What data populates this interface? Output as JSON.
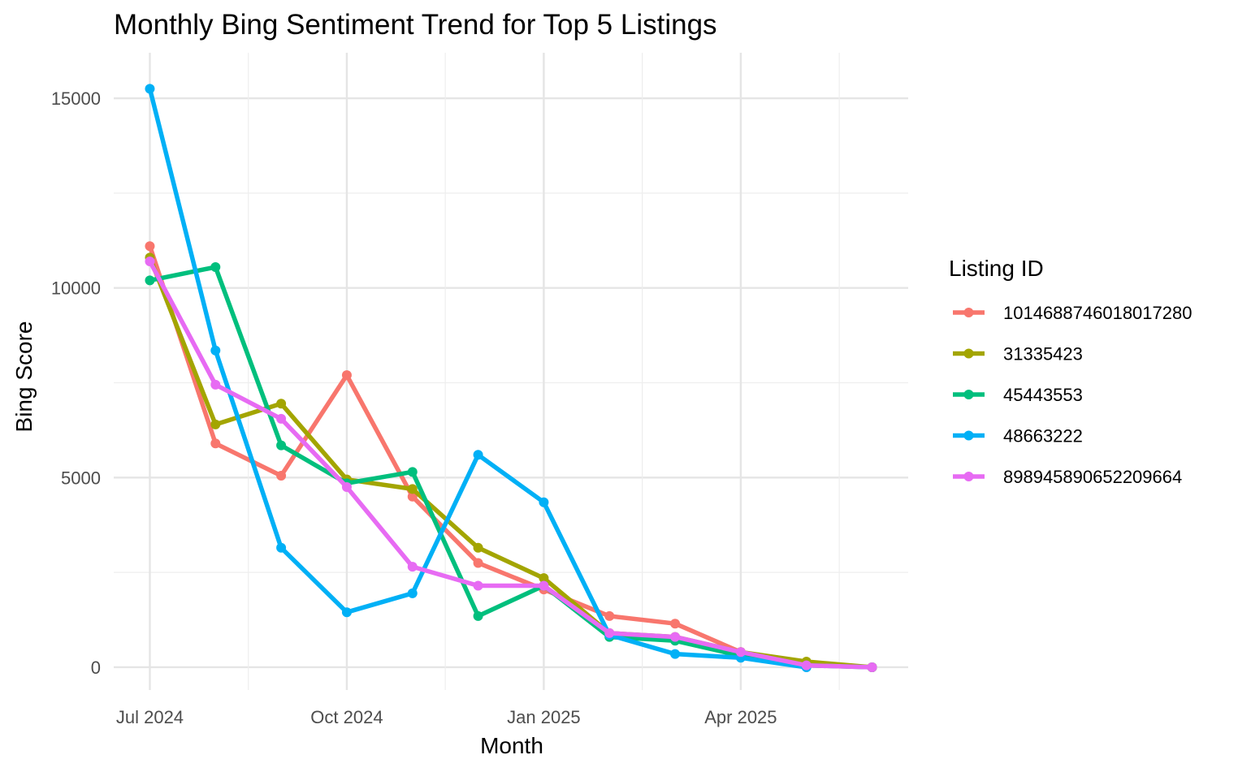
{
  "chart_data": {
    "type": "line",
    "title": "Monthly Bing Sentiment Trend for Top 5 Listings",
    "xlabel": "Month",
    "ylabel": "Bing Score",
    "x": [
      "2024-07",
      "2024-08",
      "2024-09",
      "2024-10",
      "2024-11",
      "2024-12",
      "2025-01",
      "2025-02",
      "2025-03",
      "2025-04",
      "2025-05",
      "2025-06"
    ],
    "x_ticks": [
      {
        "month": "2024-07",
        "label": "Jul 2024"
      },
      {
        "month": "2024-10",
        "label": "Oct 2024"
      },
      {
        "month": "2025-01",
        "label": "Jan 2025"
      },
      {
        "month": "2025-04",
        "label": "Apr 2025"
      }
    ],
    "ylim": [
      -600,
      16200
    ],
    "y_ticks": [
      0,
      5000,
      10000,
      15000
    ],
    "grid": true,
    "legend": {
      "title": "Listing ID",
      "position": "right"
    },
    "series": [
      {
        "name": "1014688746018017280",
        "color": "#F8766D",
        "points": [
          [
            "2024-07",
            11100
          ],
          [
            "2024-08",
            5900
          ],
          [
            "2024-09",
            5050
          ],
          [
            "2024-10",
            7700
          ],
          [
            "2024-11",
            4500
          ],
          [
            "2024-12",
            2750
          ],
          [
            "2025-01",
            2050
          ],
          [
            "2025-02",
            1350
          ],
          [
            "2025-03",
            1150
          ],
          [
            "2025-04",
            400
          ],
          [
            "2025-05",
            100
          ],
          [
            "2025-06",
            0
          ]
        ]
      },
      {
        "name": "31335423",
        "color": "#A3A500",
        "points": [
          [
            "2024-07",
            10800
          ],
          [
            "2024-08",
            6400
          ],
          [
            "2024-09",
            6950
          ],
          [
            "2024-10",
            4950
          ],
          [
            "2024-11",
            4700
          ],
          [
            "2024-12",
            3150
          ],
          [
            "2025-01",
            2350
          ],
          [
            "2025-02",
            900
          ],
          [
            "2025-03",
            800
          ],
          [
            "2025-04",
            400
          ],
          [
            "2025-05",
            150
          ],
          [
            "2025-06",
            0
          ]
        ]
      },
      {
        "name": "45443553",
        "color": "#00BF7D",
        "points": [
          [
            "2024-07",
            10200
          ],
          [
            "2024-08",
            10550
          ],
          [
            "2024-09",
            5850
          ],
          [
            "2024-10",
            4850
          ],
          [
            "2024-11",
            5150
          ],
          [
            "2024-12",
            1350
          ],
          [
            "2025-01",
            2150
          ],
          [
            "2025-02",
            800
          ],
          [
            "2025-03",
            700
          ],
          [
            "2025-04",
            300
          ],
          [
            "2025-05",
            50
          ],
          [
            "2025-06",
            0
          ]
        ]
      },
      {
        "name": "48663222",
        "color": "#00B0F6",
        "points": [
          [
            "2024-07",
            15250
          ],
          [
            "2024-08",
            8350
          ],
          [
            "2024-09",
            3150
          ],
          [
            "2024-10",
            1450
          ],
          [
            "2024-11",
            1950
          ],
          [
            "2024-12",
            5600
          ],
          [
            "2025-01",
            4350
          ],
          [
            "2025-02",
            850
          ],
          [
            "2025-03",
            350
          ],
          [
            "2025-04",
            250
          ],
          [
            "2025-05",
            0
          ]
        ]
      },
      {
        "name": "898945890652209664",
        "color": "#E76BF3",
        "points": [
          [
            "2024-07",
            10700
          ],
          [
            "2024-08",
            7450
          ],
          [
            "2024-09",
            6550
          ],
          [
            "2024-10",
            4750
          ],
          [
            "2024-11",
            2650
          ],
          [
            "2024-12",
            2150
          ],
          [
            "2025-01",
            2150
          ],
          [
            "2025-02",
            900
          ],
          [
            "2025-03",
            800
          ],
          [
            "2025-04",
            400
          ],
          [
            "2025-05",
            50
          ],
          [
            "2025-06",
            0
          ]
        ]
      }
    ]
  }
}
